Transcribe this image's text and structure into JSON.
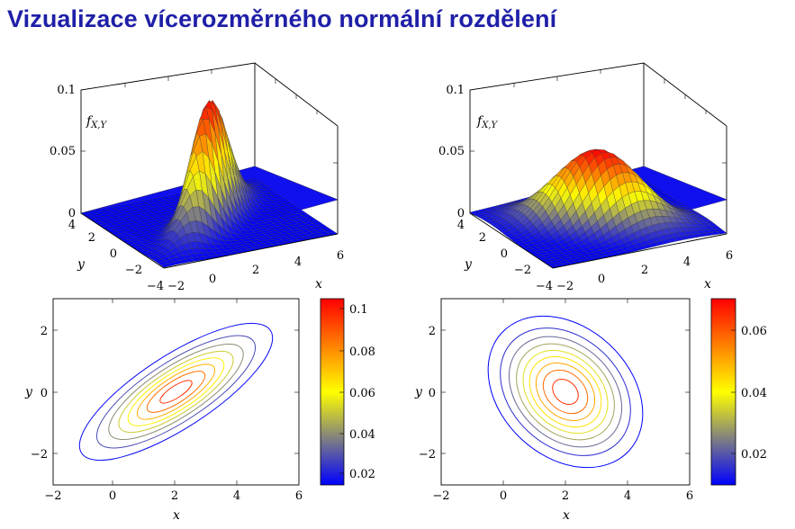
{
  "page": {
    "title": "Vizualizace vícerozměrného normální rozdělení"
  },
  "colors": {
    "title": "#1f1fa8",
    "colormap": [
      "#0000ff",
      "#808080",
      "#ffff00",
      "#ff8000",
      "#ff0000"
    ]
  },
  "chart_data": [
    {
      "type": "surface",
      "zlabel": "f_{X,Y}",
      "xlabel": "x",
      "ylabel": "y",
      "xlim": [
        -2,
        6
      ],
      "ylim": [
        -4,
        4
      ],
      "zlim": [
        0,
        0.1
      ],
      "xticks": [
        "−2",
        "0",
        "2",
        "4",
        "6"
      ],
      "yticks": [
        "−4",
        "−2",
        "0",
        "2",
        "4"
      ],
      "zticks": [
        "0",
        "0.05",
        "0.1"
      ],
      "peak_value": 0.1,
      "mean": [
        2,
        0
      ]
    },
    {
      "type": "surface",
      "zlabel": "f_{X,Y}",
      "xlabel": "x",
      "ylabel": "y",
      "xlim": [
        -2,
        6
      ],
      "ylim": [
        -4,
        4
      ],
      "zlim": [
        0,
        0.1
      ],
      "xticks": [
        "−2",
        "0",
        "2",
        "4",
        "6"
      ],
      "yticks": [
        "−4",
        "−2",
        "0",
        "2",
        "4"
      ],
      "zticks": [
        "0",
        "0.05",
        "0.1"
      ],
      "peak_value": 0.06,
      "mean": [
        2,
        0
      ]
    },
    {
      "type": "contour",
      "xlabel": "x",
      "ylabel": "y",
      "xlim": [
        -2,
        6
      ],
      "ylim": [
        -3,
        3
      ],
      "xticks": [
        "−2",
        "0",
        "2",
        "4",
        "6"
      ],
      "yticks": [
        "−2",
        "0",
        "2"
      ],
      "colorbar": {
        "min": 0.01,
        "max": 0.105,
        "ticks": [
          "0.02",
          "0.04",
          "0.06",
          "0.08",
          "0.1"
        ]
      },
      "center": [
        2,
        0
      ],
      "orientation": "positive correlation",
      "levels": [
        0.012,
        0.024,
        0.036,
        0.048,
        0.06,
        0.072,
        0.084,
        0.096
      ]
    },
    {
      "type": "contour",
      "xlabel": "x",
      "ylabel": "y",
      "xlim": [
        -2,
        6
      ],
      "ylim": [
        -3,
        3
      ],
      "xticks": [
        "−2",
        "0",
        "2",
        "4",
        "6"
      ],
      "yticks": [
        "−2",
        "0",
        "2"
      ],
      "colorbar": {
        "min": 0.01,
        "max": 0.07,
        "ticks": [
          "0.02",
          "0.04",
          "0.06"
        ]
      },
      "center": [
        2,
        0
      ],
      "orientation": "negative correlation",
      "levels": [
        0.0083,
        0.0153,
        0.0223,
        0.0293,
        0.0363,
        0.0433,
        0.0503,
        0.0573,
        0.0643
      ]
    }
  ]
}
